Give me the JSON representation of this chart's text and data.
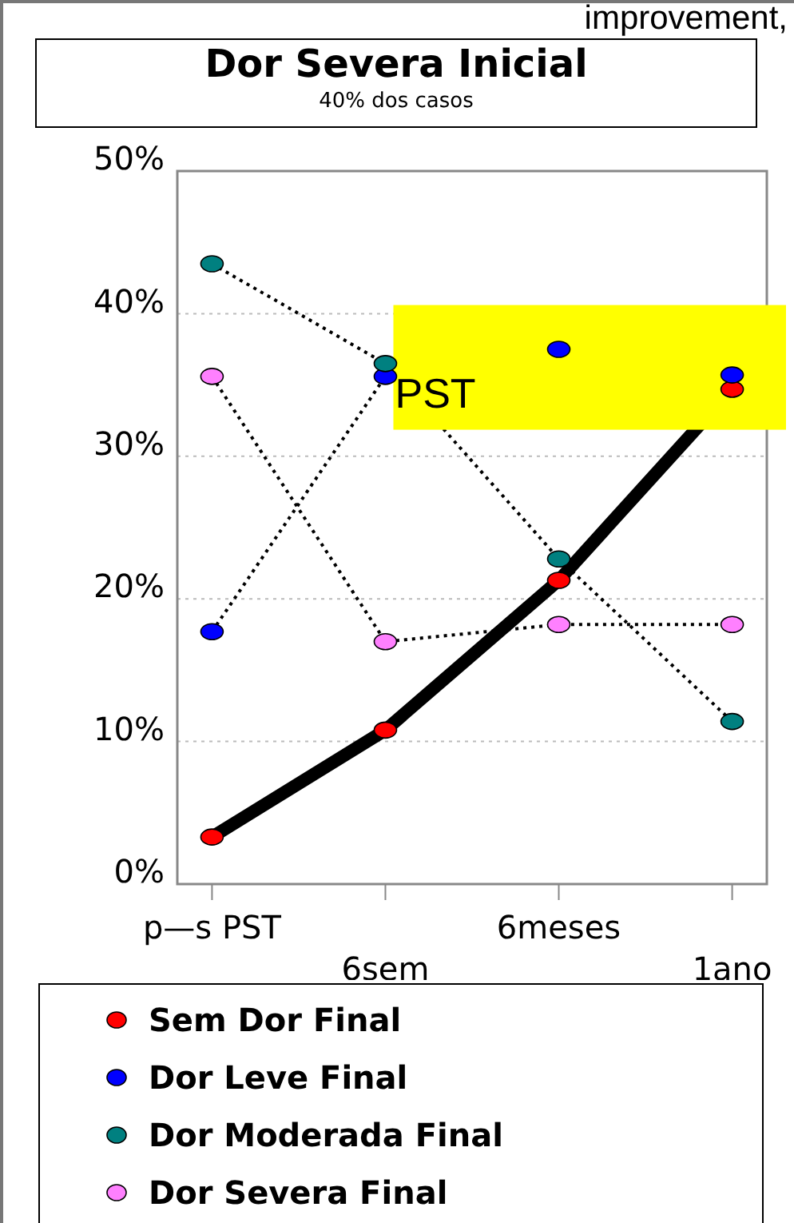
{
  "chart_data": {
    "type": "line",
    "title": "Dor Severa Inicial",
    "subtitle": "40% dos casos",
    "annotations": [
      "improvement,",
      {
        "text": "PST",
        "x": "6sem",
        "y": 35
      }
    ],
    "categories": [
      "p—s PST",
      "6sem",
      "6meses",
      "1ano"
    ],
    "ylim": [
      0,
      50
    ],
    "yticks": [
      {
        "value": 0,
        "label": "0%"
      },
      {
        "value": 10,
        "label": "10%"
      },
      {
        "value": 20,
        "label": "20%"
      },
      {
        "value": 30,
        "label": "30%"
      },
      {
        "value": 40,
        "label": "40%"
      },
      {
        "value": 50,
        "label": "50%"
      }
    ],
    "grid": "y",
    "legend": "bottom",
    "marker": "circle",
    "series": [
      {
        "name": "Sem Dor Final",
        "color": "#ff0000",
        "line_style": "solid",
        "values": [
          3.3,
          10.8,
          21.3,
          34.7
        ]
      },
      {
        "name": "Dor Leve Final",
        "color": "#0000ff",
        "line_style": "dotted",
        "values": [
          17.7,
          35.6,
          37.5,
          35.7
        ]
      },
      {
        "name": "Dor Moderada Final",
        "color": "#008080",
        "line_style": "dotted",
        "values": [
          43.5,
          36.5,
          22.8,
          11.4
        ]
      },
      {
        "name": "Dor Severa Final",
        "color": "#ff80ff",
        "line_style": "dotted",
        "values": [
          35.6,
          17.0,
          18.2,
          18.2
        ]
      }
    ]
  }
}
